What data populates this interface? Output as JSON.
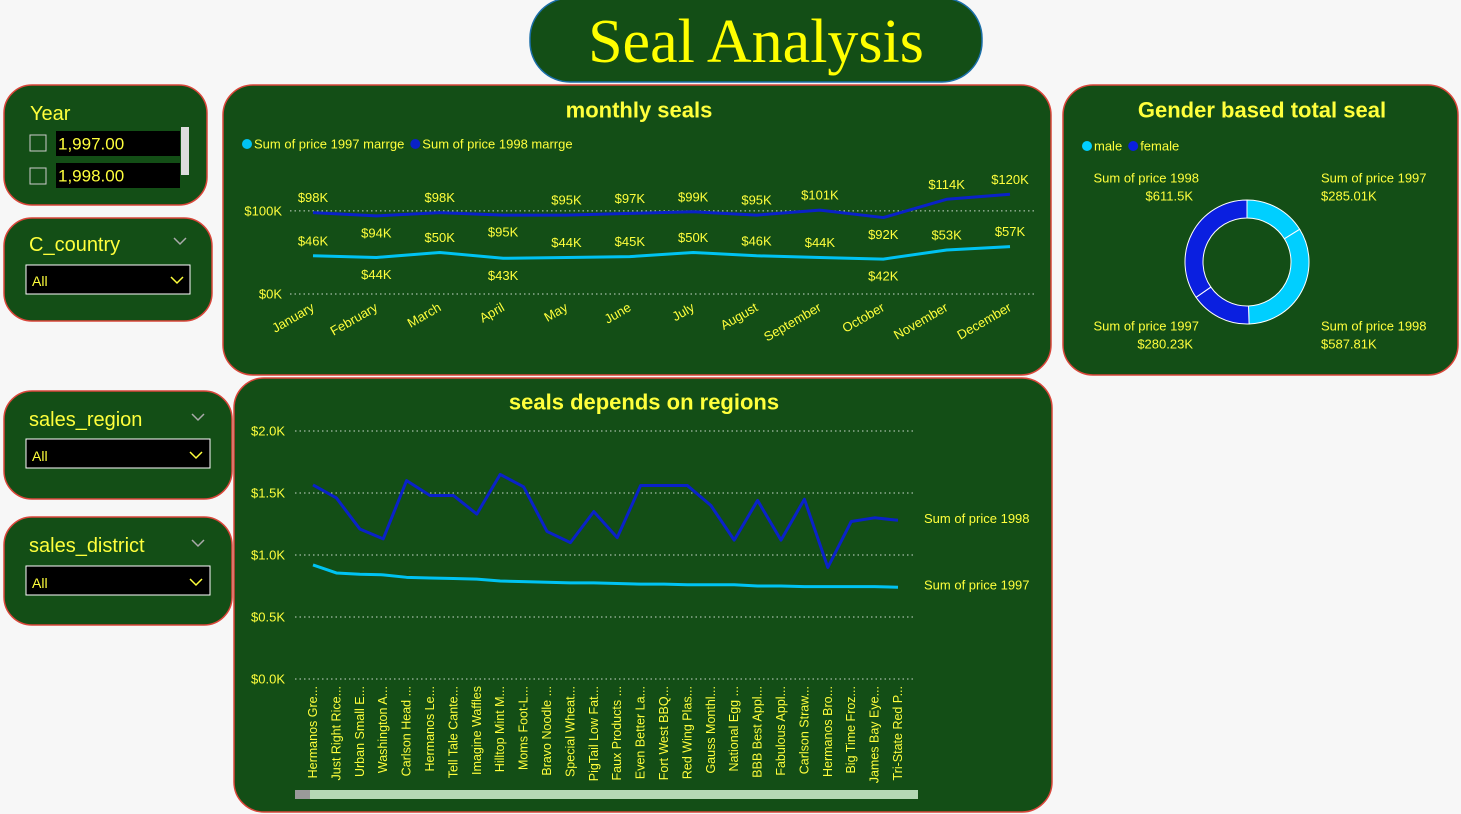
{
  "header": {
    "title": "Seal Analysis"
  },
  "slicers": [
    {
      "title": "Year",
      "options": [
        "1,997.00",
        "1,998.00"
      ]
    },
    {
      "title": "C_country",
      "selection": "All"
    },
    {
      "title": "sales_region",
      "selection": "All"
    },
    {
      "title": "sales_district",
      "selection": "All"
    }
  ],
  "chart_data": [
    {
      "type": "line",
      "title": "monthly seals",
      "categories": [
        "January",
        "February",
        "March",
        "April",
        "May",
        "June",
        "July",
        "August",
        "September",
        "October",
        "November",
        "December"
      ],
      "series": [
        {
          "name": "Sum of price 1997 marrge",
          "color": "#00c3f2",
          "values": [
            46000,
            44000,
            50000,
            43000,
            44000,
            45000,
            50000,
            46000,
            44000,
            42000,
            53000,
            57000
          ],
          "value_labels": [
            "$46K",
            "$44K",
            "$50K",
            "$43K",
            "$44K",
            "$45K",
            "$50K",
            "$46K",
            "$44K",
            "$42K",
            "$53K",
            "$57K"
          ]
        },
        {
          "name": "Sum of price 1998 marrge",
          "color": "#0a22c8",
          "values": [
            98000,
            94000,
            98000,
            95000,
            95000,
            97000,
            99000,
            95000,
            101000,
            92000,
            114000,
            120000
          ],
          "value_labels": [
            "$98K",
            "$94K",
            "$98K",
            "$95K",
            "$95K",
            "$97K",
            "$99K",
            "$95K",
            "$101K",
            "$92K",
            "$114K",
            "$120K"
          ]
        }
      ],
      "ylim": [
        0,
        130000
      ],
      "yticks": [
        {
          "value": 0,
          "label": "$0K"
        },
        {
          "value": 100000,
          "label": "$100K"
        }
      ],
      "grid": true,
      "legend": "top-left"
    },
    {
      "type": "donut",
      "title": "Gender based total seal",
      "series": [
        {
          "name": "male",
          "color": "#00cfff",
          "labels": [
            "Sum of price 1997",
            "Sum of price 1998"
          ],
          "values": [
            285010,
            587810
          ],
          "value_labels": [
            "$285.01K",
            "$587.81K"
          ]
        },
        {
          "name": "female",
          "color": "#0a1fe0",
          "labels": [
            "Sum of price 1997",
            "Sum of price 1998"
          ],
          "values": [
            280230,
            611500
          ],
          "value_labels": [
            "$280.23K",
            "$611.5K"
          ]
        }
      ],
      "legend": "top-left"
    },
    {
      "type": "line",
      "title": "seals depends on regions",
      "categories": [
        "Hermanos Gre...",
        "Just Right Rice...",
        "Urban Small E...",
        "Washington A...",
        "Carlson Head ...",
        "Hermanos Le...",
        "Tell Tale Cante...",
        "Imagine Waffles",
        "Hilltop Mint M...",
        "Moms Foot-L...",
        "Bravo Noodle ...",
        "Special Wheat...",
        "PigTail Low Fat...",
        "Faux Products ...",
        "Even Better La...",
        "Fort West BBQ...",
        "Red Wing Plas...",
        "Gauss Monthl...",
        "National Egg ...",
        "BBB Best Appl...",
        "Fabulous Appl...",
        "Carlson Straw...",
        "Hermanos Bro...",
        "Big Time Froz...",
        "James Bay Eye...",
        "Tri-State Red P..."
      ],
      "series": [
        {
          "name": "Sum of price 1998",
          "color": "#0a22c8",
          "values": [
            1565,
            1460,
            1210,
            1130,
            1600,
            1480,
            1480,
            1330,
            1650,
            1550,
            1190,
            1100,
            1350,
            1140,
            1560,
            1560,
            1560,
            1400,
            1120,
            1440,
            1120,
            1450,
            900,
            1270,
            1300,
            1280
          ]
        },
        {
          "name": "Sum of price 1997",
          "color": "#00c3f2",
          "values": [
            920,
            855,
            845,
            840,
            820,
            815,
            810,
            805,
            790,
            785,
            780,
            775,
            775,
            770,
            765,
            765,
            760,
            760,
            760,
            750,
            750,
            745,
            745,
            745,
            745,
            740
          ]
        }
      ],
      "ylim": [
        0,
        2000
      ],
      "yticks": [
        {
          "value": 0,
          "label": "$0.0K"
        },
        {
          "value": 500,
          "label": "$0.5K"
        },
        {
          "value": 1000,
          "label": "$1.0K"
        },
        {
          "value": 1500,
          "label": "$1.5K"
        },
        {
          "value": 2000,
          "label": "$2.0K"
        }
      ],
      "grid": true,
      "legend": "line-end"
    }
  ]
}
